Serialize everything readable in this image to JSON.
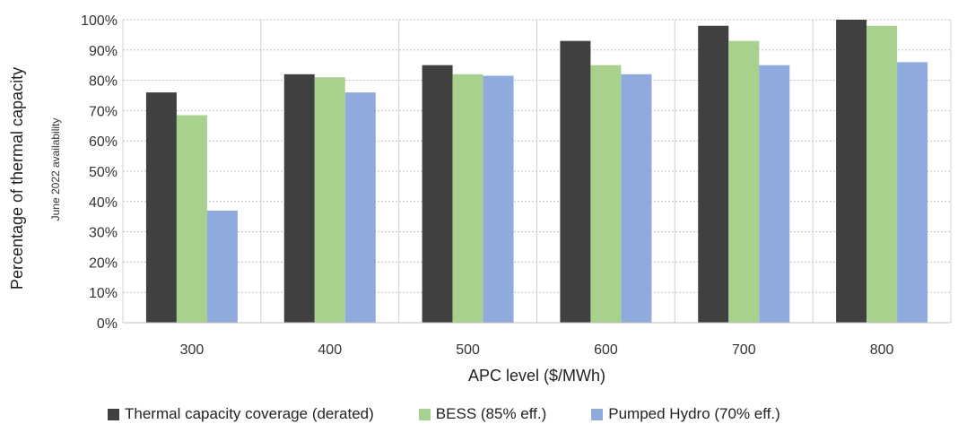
{
  "chart_data": {
    "type": "bar",
    "categories": [
      "300",
      "400",
      "500",
      "600",
      "700",
      "800"
    ],
    "series": [
      {
        "name": "Thermal capacity coverage (derated)",
        "color": "#404040",
        "values": [
          76,
          82,
          85,
          93,
          98,
          100
        ]
      },
      {
        "name": "BESS (85% eff.)",
        "color": "#a9d18e",
        "values": [
          68.5,
          81,
          82,
          85,
          93,
          98
        ]
      },
      {
        "name": "Pumped Hydro (70% eff.)",
        "color": "#8faadc",
        "values": [
          37,
          76,
          81.5,
          82,
          85,
          86
        ]
      }
    ],
    "xlabel": "APC level ($/MWh)",
    "ylabel": "Percentage of thermal capacity",
    "annotation": "June 2022 availability",
    "ylim": [
      0,
      100
    ],
    "yticks": [
      "0%",
      "10%",
      "20%",
      "30%",
      "40%",
      "50%",
      "60%",
      "70%",
      "80%",
      "90%",
      "100%"
    ],
    "grid": "dotted horizontal, solid vertical category separators",
    "legend_position": "bottom"
  }
}
